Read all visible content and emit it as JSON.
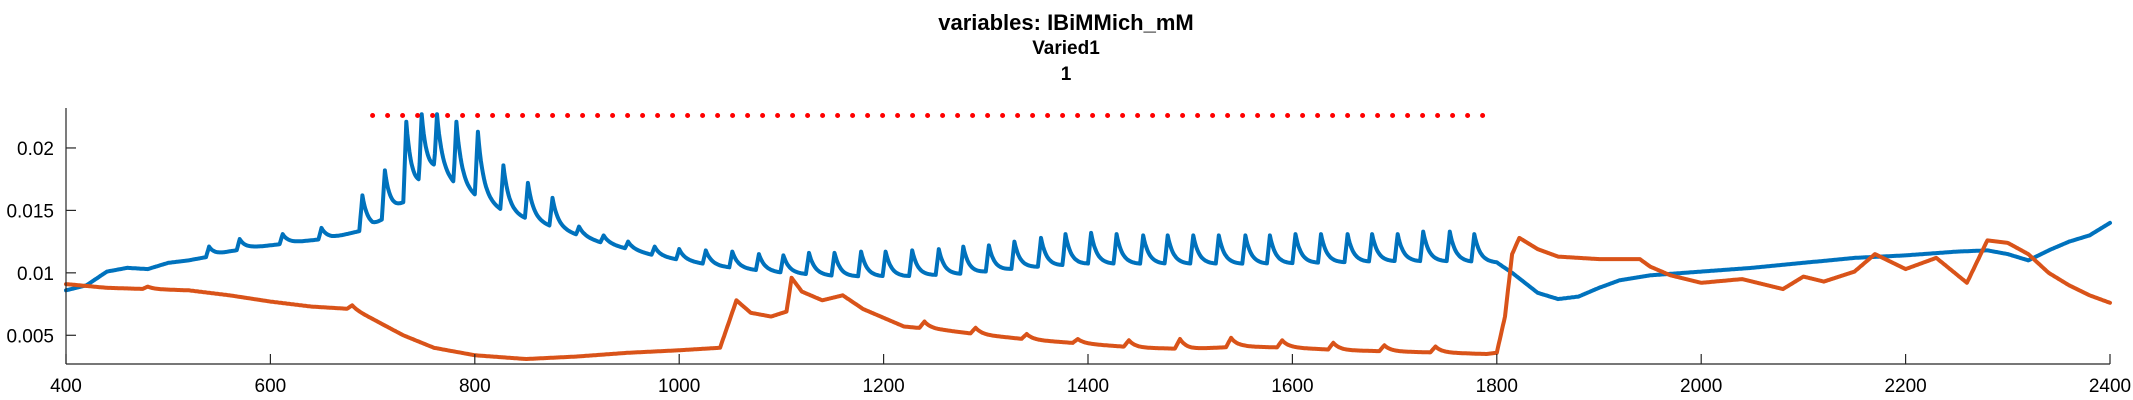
{
  "chart_data": {
    "type": "line",
    "title": "variables: IBiMMich_mM",
    "subtitle": "Varied1",
    "subtitle2": "1",
    "xlabel": "",
    "ylabel": "",
    "xlim": [
      400,
      2400
    ],
    "ylim": [
      0.0027,
      0.0232
    ],
    "x_ticks": [
      400,
      600,
      800,
      1000,
      1200,
      1400,
      1600,
      1800,
      2000,
      2200,
      2400
    ],
    "x_tick_labels": [
      "400",
      "600",
      "800",
      "1000",
      "1200",
      "1400",
      "1600",
      "1800",
      "2000",
      "2200",
      "2400"
    ],
    "y_ticks": [
      0.005,
      0.01,
      0.015,
      0.02
    ],
    "y_tick_labels": [
      "0.005",
      "0.01",
      "0.015",
      "0.02"
    ],
    "grid": false,
    "legend": "none",
    "colors": {
      "blue_series": "#0072BD",
      "orange_series": "#D95319",
      "threshold_line": "#FF0000"
    },
    "series": [
      {
        "color": "blue_series",
        "points": [
          [
            400,
            0.0086
          ],
          [
            420,
            0.009
          ],
          [
            440,
            0.0101
          ],
          [
            460,
            0.0104
          ],
          [
            480,
            0.0103
          ],
          [
            500,
            0.0108
          ],
          [
            520,
            0.011
          ],
          [
            540,
            0.0113
          ],
          [
            560,
            0.0117
          ],
          [
            580,
            0.012
          ],
          [
            600,
            0.0122
          ],
          [
            620,
            0.0124
          ],
          [
            640,
            0.0126
          ],
          [
            660,
            0.0128
          ],
          [
            680,
            0.0132
          ],
          [
            700,
            0.0136
          ],
          [
            730,
            0.0155
          ],
          [
            760,
            0.018
          ],
          [
            790,
            0.0165
          ],
          [
            830,
            0.0148
          ],
          [
            870,
            0.0138
          ],
          [
            920,
            0.0125
          ],
          [
            980,
            0.0113
          ],
          [
            1040,
            0.0105
          ],
          [
            1100,
            0.01
          ],
          [
            1160,
            0.0097
          ],
          [
            1220,
            0.0097
          ],
          [
            1280,
            0.0099
          ],
          [
            1340,
            0.0104
          ],
          [
            1400,
            0.0107
          ],
          [
            1460,
            0.0107
          ],
          [
            1520,
            0.0107
          ],
          [
            1580,
            0.0107
          ],
          [
            1640,
            0.0108
          ],
          [
            1700,
            0.0109
          ],
          [
            1760,
            0.0109
          ],
          [
            1800,
            0.0108
          ],
          [
            1815,
            0.01
          ],
          [
            1840,
            0.0084
          ],
          [
            1860,
            0.0079
          ],
          [
            1880,
            0.0081
          ],
          [
            1900,
            0.0088
          ],
          [
            1920,
            0.0094
          ],
          [
            1950,
            0.0098
          ],
          [
            2000,
            0.0101
          ],
          [
            2050,
            0.0104
          ],
          [
            2100,
            0.0108
          ],
          [
            2150,
            0.0112
          ],
          [
            2200,
            0.0114
          ],
          [
            2250,
            0.0117
          ],
          [
            2280,
            0.0118
          ],
          [
            2300,
            0.0115
          ],
          [
            2320,
            0.011
          ],
          [
            2340,
            0.0118
          ],
          [
            2360,
            0.0125
          ],
          [
            2380,
            0.013
          ],
          [
            2400,
            0.014
          ]
        ],
        "spikes": [
          [
            690,
            0.0162
          ],
          [
            712,
            0.0182
          ],
          [
            733,
            0.0221
          ],
          [
            748,
            0.0227
          ],
          [
            763,
            0.0227
          ],
          [
            782,
            0.0221
          ],
          [
            803,
            0.0213
          ],
          [
            828,
            0.0186
          ],
          [
            852,
            0.0172
          ],
          [
            876,
            0.016
          ],
          [
            902,
            0.0137
          ],
          [
            926,
            0.013
          ],
          [
            950,
            0.0125
          ],
          [
            976,
            0.0121
          ],
          [
            1000,
            0.0119
          ],
          [
            1026,
            0.0118
          ],
          [
            1052,
            0.0117
          ],
          [
            1078,
            0.0115
          ],
          [
            1102,
            0.0114
          ],
          [
            1127,
            0.0116
          ],
          [
            1152,
            0.0116
          ],
          [
            1178,
            0.0117
          ],
          [
            1202,
            0.0117
          ],
          [
            1228,
            0.0118
          ],
          [
            1254,
            0.0119
          ],
          [
            1278,
            0.0121
          ],
          [
            1303,
            0.0122
          ],
          [
            1328,
            0.0125
          ],
          [
            1354,
            0.0128
          ],
          [
            1378,
            0.0131
          ],
          [
            1403,
            0.0132
          ],
          [
            1428,
            0.0131
          ],
          [
            1454,
            0.013
          ],
          [
            1478,
            0.013
          ],
          [
            1503,
            0.013
          ],
          [
            1528,
            0.013
          ],
          [
            1554,
            0.013
          ],
          [
            1578,
            0.013
          ],
          [
            1603,
            0.0131
          ],
          [
            1628,
            0.0131
          ],
          [
            1654,
            0.0131
          ],
          [
            1678,
            0.0131
          ],
          [
            1703,
            0.0131
          ],
          [
            1728,
            0.0133
          ],
          [
            1754,
            0.0133
          ],
          [
            1778,
            0.0131
          ]
        ],
        "early_bumps": [
          [
            540,
            0.0121
          ],
          [
            570,
            0.0127
          ],
          [
            612,
            0.0131
          ],
          [
            650,
            0.0136
          ]
        ]
      },
      {
        "color": "orange_series",
        "points": [
          [
            400,
            0.0091
          ],
          [
            440,
            0.0088
          ],
          [
            480,
            0.0087
          ],
          [
            520,
            0.0086
          ],
          [
            560,
            0.0082
          ],
          [
            600,
            0.0077
          ],
          [
            640,
            0.0073
          ],
          [
            680,
            0.0071
          ],
          [
            700,
            0.0063
          ],
          [
            730,
            0.005
          ],
          [
            760,
            0.004
          ],
          [
            800,
            0.0034
          ],
          [
            850,
            0.0031
          ],
          [
            900,
            0.0033
          ],
          [
            950,
            0.0036
          ],
          [
            1000,
            0.0038
          ],
          [
            1040,
            0.004
          ],
          [
            1056,
            0.0078
          ],
          [
            1070,
            0.0068
          ],
          [
            1090,
            0.0065
          ],
          [
            1105,
            0.0069
          ],
          [
            1110,
            0.0096
          ],
          [
            1120,
            0.0085
          ],
          [
            1140,
            0.0078
          ],
          [
            1160,
            0.0082
          ],
          [
            1180,
            0.0071
          ],
          [
            1220,
            0.0057
          ],
          [
            1260,
            0.0054
          ],
          [
            1300,
            0.005
          ],
          [
            1350,
            0.0046
          ],
          [
            1400,
            0.0043
          ],
          [
            1450,
            0.004
          ],
          [
            1500,
            0.0039
          ],
          [
            1550,
            0.0041
          ],
          [
            1600,
            0.004
          ],
          [
            1650,
            0.0038
          ],
          [
            1700,
            0.0037
          ],
          [
            1750,
            0.0036
          ],
          [
            1790,
            0.0035
          ],
          [
            1800,
            0.0036
          ],
          [
            1808,
            0.0065
          ],
          [
            1815,
            0.0115
          ],
          [
            1822,
            0.0128
          ],
          [
            1840,
            0.0119
          ],
          [
            1860,
            0.0113
          ],
          [
            1900,
            0.0111
          ],
          [
            1940,
            0.0111
          ],
          [
            1950,
            0.0105
          ],
          [
            1970,
            0.0098
          ],
          [
            2000,
            0.0092
          ],
          [
            2040,
            0.0095
          ],
          [
            2080,
            0.0087
          ],
          [
            2100,
            0.0097
          ],
          [
            2120,
            0.0093
          ],
          [
            2150,
            0.0101
          ],
          [
            2170,
            0.0115
          ],
          [
            2200,
            0.0103
          ],
          [
            2230,
            0.0112
          ],
          [
            2260,
            0.0092
          ],
          [
            2280,
            0.0126
          ],
          [
            2300,
            0.0124
          ],
          [
            2320,
            0.0115
          ],
          [
            2340,
            0.01
          ],
          [
            2360,
            0.009
          ],
          [
            2380,
            0.0082
          ],
          [
            2400,
            0.0076
          ]
        ],
        "ripples": [
          [
            480,
            0.0089
          ],
          [
            520,
            0.0086
          ],
          [
            560,
            0.0078
          ],
          [
            600,
            0.0073
          ],
          [
            640,
            0.007
          ],
          [
            680,
            0.0074
          ],
          [
            1240,
            0.0061
          ],
          [
            1290,
            0.0056
          ],
          [
            1340,
            0.0051
          ],
          [
            1390,
            0.0047
          ],
          [
            1440,
            0.0046
          ],
          [
            1490,
            0.0047
          ],
          [
            1540,
            0.0048
          ],
          [
            1590,
            0.0046
          ],
          [
            1640,
            0.0044
          ],
          [
            1690,
            0.0042
          ],
          [
            1740,
            0.0041
          ]
        ]
      },
      {
        "color": "threshold_line",
        "style": "dotted",
        "points": [
          [
            700,
            0.0226
          ],
          [
            1790,
            0.0226
          ]
        ]
      }
    ]
  }
}
